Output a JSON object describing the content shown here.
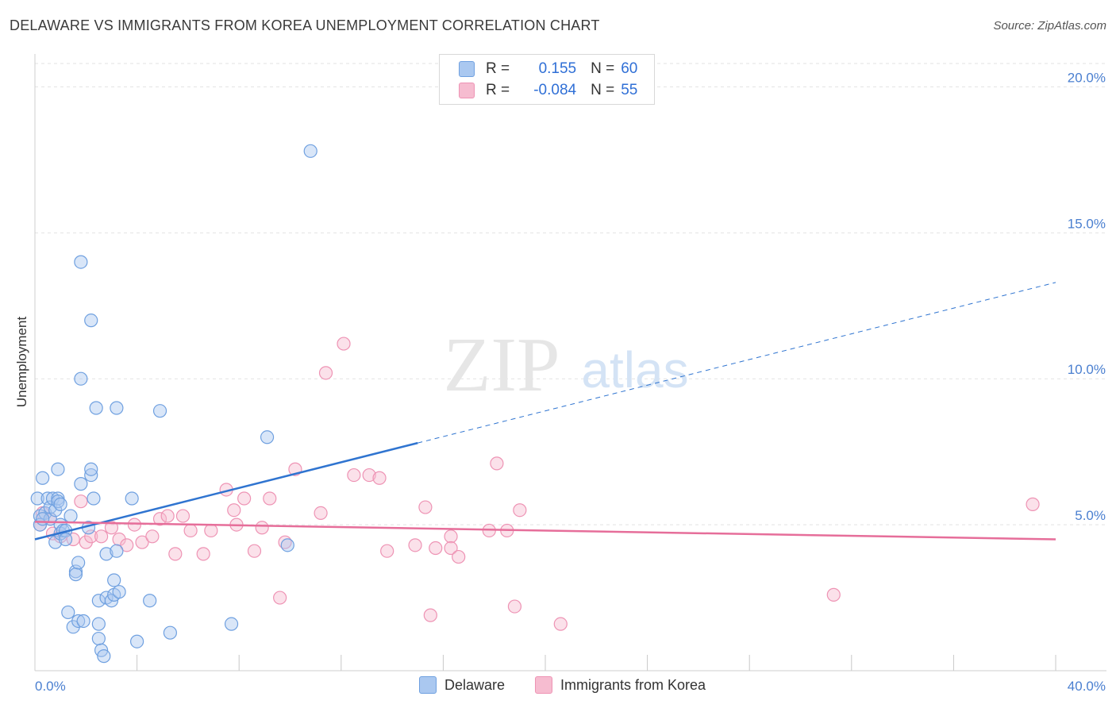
{
  "header": {
    "title": "DELAWARE VS IMMIGRANTS FROM KOREA UNEMPLOYMENT CORRELATION CHART",
    "source": "Source: ZipAtlas.com"
  },
  "watermark": {
    "zip": "ZIP",
    "atlas": "atlas"
  },
  "legend": {
    "r_label": "R =",
    "n_label": "N =",
    "delaware": {
      "r": "0.155",
      "n": "60"
    },
    "korea": {
      "r": "-0.084",
      "n": "55"
    }
  },
  "colors": {
    "delaware_fill": "#aac8f0",
    "delaware_stroke": "#6fa0e0",
    "delaware_line": "#2f74d0",
    "korea_fill": "#f6bcd0",
    "korea_stroke": "#ee93b4",
    "korea_line": "#e66e9a",
    "tick_label": "#4a7fd0",
    "grid": "#e2e2e2"
  },
  "chart_data": {
    "type": "scatter",
    "title": "DELAWARE VS IMMIGRANTS FROM KOREA UNEMPLOYMENT CORRELATION CHART",
    "xlabel": "",
    "ylabel": "Unemployment",
    "xlim": [
      0,
      40
    ],
    "ylim": [
      0,
      20.8
    ],
    "x_tick_labels": [
      {
        "value": 0,
        "label": "0.0%"
      },
      {
        "value": 40,
        "label": "40.0%"
      }
    ],
    "y_tick_labels": [
      {
        "value": 5,
        "label": "5.0%"
      },
      {
        "value": 10,
        "label": "10.0%"
      },
      {
        "value": 15,
        "label": "15.0%"
      },
      {
        "value": 20,
        "label": "20.0%"
      }
    ],
    "x_minor_ticks": [
      4,
      8,
      12,
      16,
      20,
      24,
      28,
      32,
      36,
      40
    ],
    "series": [
      {
        "name": "Delaware",
        "color": "#6fa0e0",
        "trend": {
          "x0": 0,
          "y0": 4.5,
          "x1": 15,
          "y1": 7.8,
          "dash_x1": 40,
          "dash_y1": 13.3
        },
        "points": [
          [
            0.1,
            5.9
          ],
          [
            0.2,
            5.3
          ],
          [
            0.2,
            5.0
          ],
          [
            0.3,
            6.6
          ],
          [
            0.4,
            5.4
          ],
          [
            0.5,
            5.9
          ],
          [
            0.6,
            5.2
          ],
          [
            0.6,
            5.6
          ],
          [
            0.7,
            5.9
          ],
          [
            0.8,
            5.5
          ],
          [
            0.8,
            4.4
          ],
          [
            0.9,
            5.9
          ],
          [
            0.9,
            6.9
          ],
          [
            0.9,
            5.8
          ],
          [
            1.0,
            5.7
          ],
          [
            1.0,
            5.0
          ],
          [
            1.0,
            4.7
          ],
          [
            1.1,
            4.8
          ],
          [
            1.2,
            4.8
          ],
          [
            1.2,
            4.5
          ],
          [
            1.3,
            2.0
          ],
          [
            1.4,
            5.3
          ],
          [
            1.5,
            1.5
          ],
          [
            1.6,
            3.4
          ],
          [
            1.6,
            3.3
          ],
          [
            1.7,
            1.7
          ],
          [
            1.7,
            3.7
          ],
          [
            1.8,
            6.4
          ],
          [
            1.8,
            14.0
          ],
          [
            1.9,
            1.7
          ],
          [
            2.1,
            4.9
          ],
          [
            2.2,
            6.7
          ],
          [
            2.2,
            6.9
          ],
          [
            2.3,
            5.9
          ],
          [
            2.2,
            12.0
          ],
          [
            2.4,
            9.0
          ],
          [
            2.5,
            1.6
          ],
          [
            2.5,
            1.1
          ],
          [
            2.5,
            2.4
          ],
          [
            2.6,
            0.7
          ],
          [
            2.7,
            0.5
          ],
          [
            2.8,
            4.0
          ],
          [
            2.8,
            2.5
          ],
          [
            3.0,
            2.4
          ],
          [
            3.1,
            2.6
          ],
          [
            3.1,
            3.1
          ],
          [
            3.2,
            4.1
          ],
          [
            3.3,
            2.7
          ],
          [
            3.2,
            9.0
          ],
          [
            3.8,
            5.9
          ],
          [
            4.0,
            1.0
          ],
          [
            4.5,
            2.4
          ],
          [
            4.9,
            8.9
          ],
          [
            5.3,
            1.3
          ],
          [
            7.7,
            1.6
          ],
          [
            9.1,
            8.0
          ],
          [
            9.9,
            4.3
          ],
          [
            10.8,
            17.8
          ],
          [
            1.8,
            10.0
          ],
          [
            0.3,
            5.2
          ]
        ]
      },
      {
        "name": "Immigrants from Korea",
        "color": "#ee93b4",
        "trend": {
          "x0": 0,
          "y0": 5.1,
          "x1": 40,
          "y1": 4.5
        },
        "points": [
          [
            0.2,
            5.0
          ],
          [
            0.3,
            5.4
          ],
          [
            0.6,
            5.2
          ],
          [
            0.7,
            4.7
          ],
          [
            1.0,
            4.6
          ],
          [
            1.5,
            4.5
          ],
          [
            1.8,
            5.8
          ],
          [
            2.0,
            4.4
          ],
          [
            2.2,
            4.6
          ],
          [
            2.6,
            4.6
          ],
          [
            3.0,
            4.9
          ],
          [
            3.3,
            4.5
          ],
          [
            3.6,
            4.3
          ],
          [
            3.9,
            5.0
          ],
          [
            4.2,
            4.4
          ],
          [
            4.6,
            4.6
          ],
          [
            4.9,
            5.2
          ],
          [
            5.2,
            5.3
          ],
          [
            5.5,
            4.0
          ],
          [
            5.8,
            5.3
          ],
          [
            6.1,
            4.8
          ],
          [
            6.6,
            4.0
          ],
          [
            6.9,
            4.8
          ],
          [
            7.5,
            6.2
          ],
          [
            7.8,
            5.5
          ],
          [
            7.9,
            5.0
          ],
          [
            8.2,
            5.9
          ],
          [
            8.6,
            4.1
          ],
          [
            8.9,
            4.9
          ],
          [
            9.2,
            5.9
          ],
          [
            9.6,
            2.5
          ],
          [
            9.8,
            4.4
          ],
          [
            10.2,
            6.9
          ],
          [
            11.2,
            5.4
          ],
          [
            11.4,
            10.2
          ],
          [
            12.1,
            11.2
          ],
          [
            12.5,
            6.7
          ],
          [
            13.1,
            6.7
          ],
          [
            13.5,
            6.6
          ],
          [
            13.8,
            4.1
          ],
          [
            14.9,
            4.3
          ],
          [
            15.3,
            5.6
          ],
          [
            15.5,
            1.9
          ],
          [
            15.7,
            4.2
          ],
          [
            16.3,
            4.6
          ],
          [
            16.3,
            4.2
          ],
          [
            16.6,
            3.9
          ],
          [
            17.8,
            4.8
          ],
          [
            18.1,
            7.1
          ],
          [
            18.5,
            4.8
          ],
          [
            18.8,
            2.2
          ],
          [
            19.0,
            5.5
          ],
          [
            20.6,
            1.6
          ],
          [
            31.3,
            2.6
          ],
          [
            39.1,
            5.7
          ]
        ]
      }
    ],
    "legend_position": "top-center"
  },
  "bottom_legend": {
    "delaware_label": "Delaware",
    "korea_label": "Immigrants from Korea"
  }
}
